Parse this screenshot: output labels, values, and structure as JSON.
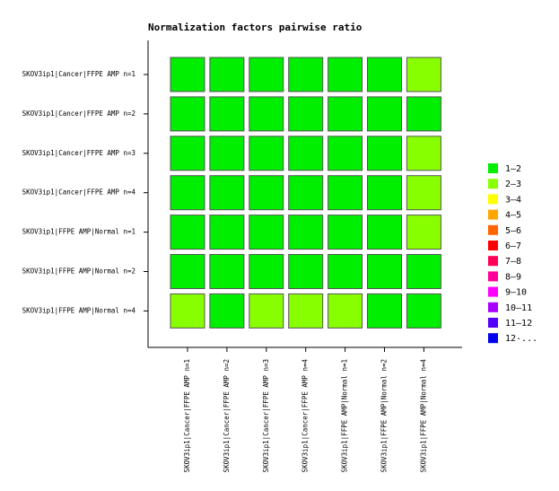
{
  "chart_data": {
    "type": "heatmap",
    "title": "Normalization factors pairwise ratio",
    "rows": [
      "SKOV3ip1|Cancer|FFPE AMP n=1",
      "SKOV3ip1|Cancer|FFPE AMP n=2",
      "SKOV3ip1|Cancer|FFPE AMP n=3",
      "SKOV3ip1|Cancer|FFPE AMP n=4",
      "SKOV3ip1|FFPE AMP|Normal n=1",
      "SKOV3ip1|FFPE AMP|Normal n=2",
      "SKOV3ip1|FFPE AMP|Normal n=4"
    ],
    "columns": [
      "SKOV3ip1|Cancer|FFPE AMP n=1",
      "SKOV3ip1|Cancer|FFPE AMP n=2",
      "SKOV3ip1|Cancer|FFPE AMP n=3",
      "SKOV3ip1|Cancer|FFPE AMP n=4",
      "SKOV3ip1|FFPE AMP|Normal n=1",
      "SKOV3ip1|FFPE AMP|Normal n=2",
      "SKOV3ip1|FFPE AMP|Normal n=4"
    ],
    "values": [
      [
        1.5,
        1.5,
        1.5,
        1.5,
        1.5,
        1.5,
        2.5
      ],
      [
        1.5,
        1.5,
        1.5,
        1.5,
        1.5,
        1.5,
        1.5
      ],
      [
        1.5,
        1.5,
        1.5,
        1.5,
        1.5,
        1.5,
        2.5
      ],
      [
        1.5,
        1.5,
        1.5,
        1.5,
        1.5,
        1.5,
        2.5
      ],
      [
        1.5,
        1.5,
        1.5,
        1.5,
        1.5,
        1.5,
        2.5
      ],
      [
        1.5,
        1.5,
        1.5,
        1.5,
        1.5,
        1.5,
        1.5
      ],
      [
        2.5,
        1.5,
        2.5,
        2.5,
        2.5,
        1.5,
        1.5
      ]
    ],
    "bins": [
      1,
      2,
      3,
      4,
      5,
      6,
      7,
      8,
      9,
      10,
      11,
      12
    ],
    "legend": {
      "labels": [
        "1–2",
        "2–3",
        "3–4",
        "4–5",
        "5–6",
        "6–7",
        "7–8",
        "8–9",
        "9–10",
        "10–11",
        "11–12",
        "12-..."
      ],
      "colors": [
        "#00ee00",
        "#88ff00",
        "#ffff00",
        "#ffa500",
        "#ff6600",
        "#ff0000",
        "#ff0055",
        "#ff0099",
        "#ff00ff",
        "#aa00ff",
        "#5500ff",
        "#0000ee"
      ]
    }
  }
}
